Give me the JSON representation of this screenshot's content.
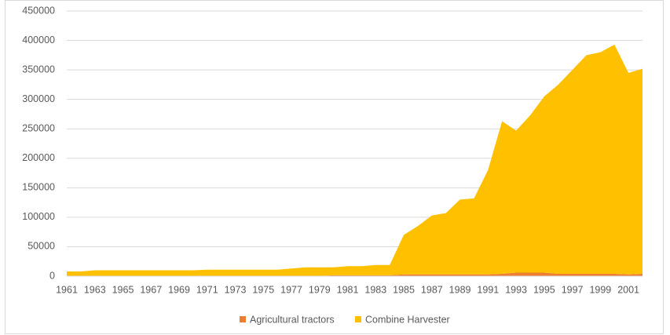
{
  "chart_data": {
    "type": "stacked_area",
    "categories": [
      "1961",
      null,
      "1963",
      null,
      "1965",
      null,
      "1967",
      null,
      "1969",
      null,
      "1971",
      null,
      "1973",
      null,
      "1975",
      null,
      "1977",
      null,
      "1979",
      null,
      "1981",
      null,
      "1983",
      null,
      "1985",
      null,
      "1987",
      null,
      "1989",
      null,
      "1991",
      null,
      "1993",
      null,
      "1995",
      null,
      "1997",
      null,
      "1999",
      null,
      "2001",
      null
    ],
    "series": [
      {
        "name": "Agricultural tractors",
        "color": "#ed7d31",
        "values": [
          500,
          500,
          500,
          500,
          500,
          500,
          500,
          500,
          500,
          500,
          500,
          500,
          500,
          500,
          500,
          500,
          500,
          500,
          500,
          1500,
          1500,
          1500,
          1500,
          1500,
          3000,
          3000,
          3000,
          3000,
          3000,
          3000,
          3000,
          4000,
          6000,
          6000,
          6000,
          4000,
          4000,
          4000,
          4000,
          4000,
          3000,
          4000
        ]
      },
      {
        "name": "Combine Harvester",
        "color": "#ffc000",
        "values": [
          7500,
          7500,
          9500,
          9500,
          9500,
          9500,
          9500,
          9500,
          9500,
          9500,
          10500,
          10500,
          10500,
          10500,
          10500,
          10500,
          12500,
          14500,
          14500,
          13500,
          15500,
          15500,
          17500,
          17500,
          67000,
          82000,
          100000,
          104000,
          127000,
          129000,
          177000,
          259000,
          241000,
          267000,
          299000,
          321000,
          346000,
          371000,
          376000,
          389000,
          342000,
          348000
        ]
      }
    ],
    "ylim": [
      0,
      450000
    ],
    "yticks": [
      0,
      50000,
      100000,
      150000,
      200000,
      250000,
      300000,
      350000,
      400000,
      450000
    ],
    "grid": true,
    "legend": "bottom"
  }
}
